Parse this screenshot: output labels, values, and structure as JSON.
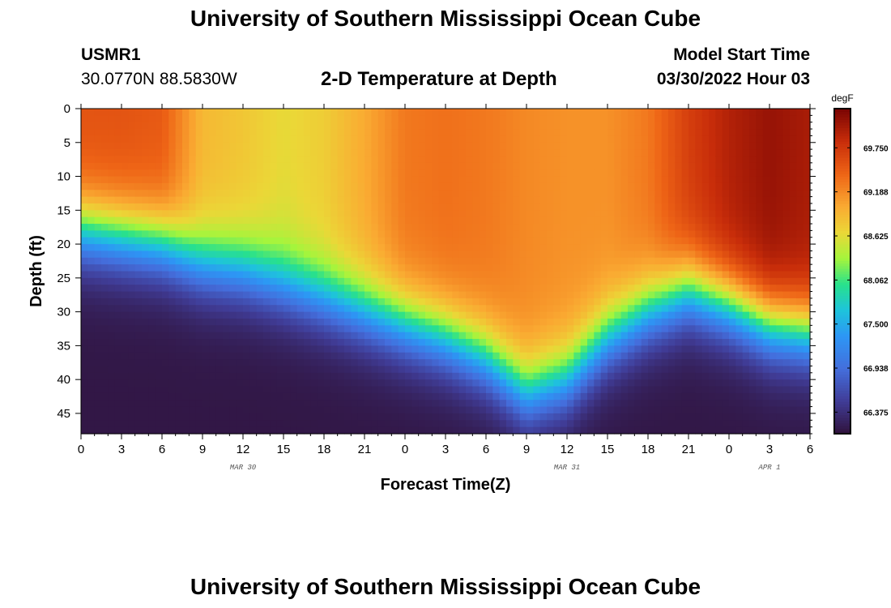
{
  "header": {
    "title": "University of Southern Mississippi Ocean Cube",
    "station_id": "USMR1",
    "station_coords": "30.0770N  88.5830W",
    "plot_title": "2-D Temperature at Depth",
    "model_start_label": "Model Start Time",
    "model_start_value": "03/30/2022 Hour 03"
  },
  "footer": {
    "title": "University of Southern Mississippi Ocean Cube"
  },
  "chart_data": {
    "type": "heatmap",
    "title": "2-D Temperature at Depth",
    "xlabel": "Forecast Time(Z)",
    "ylabel": "Depth (ft)",
    "x_range_hours": [
      0,
      54
    ],
    "x_ticks": [
      {
        "h": 0,
        "label": "0"
      },
      {
        "h": 3,
        "label": "3"
      },
      {
        "h": 6,
        "label": "6"
      },
      {
        "h": 9,
        "label": "9"
      },
      {
        "h": 12,
        "label": "12"
      },
      {
        "h": 15,
        "label": "15"
      },
      {
        "h": 18,
        "label": "18"
      },
      {
        "h": 21,
        "label": "21"
      },
      {
        "h": 24,
        "label": "0"
      },
      {
        "h": 27,
        "label": "3"
      },
      {
        "h": 30,
        "label": "6"
      },
      {
        "h": 33,
        "label": "9"
      },
      {
        "h": 36,
        "label": "12"
      },
      {
        "h": 39,
        "label": "15"
      },
      {
        "h": 42,
        "label": "18"
      },
      {
        "h": 45,
        "label": "21"
      },
      {
        "h": 48,
        "label": "0"
      },
      {
        "h": 51,
        "label": "3"
      },
      {
        "h": 54,
        "label": "6"
      }
    ],
    "date_labels": [
      {
        "h": 12,
        "label": "MAR 30"
      },
      {
        "h": 36,
        "label": "MAR 31"
      },
      {
        "h": 51,
        "label": "APR 1"
      }
    ],
    "y_range_ft": [
      0,
      48
    ],
    "y_ticks": [
      0,
      5,
      10,
      15,
      20,
      25,
      30,
      35,
      40,
      45
    ],
    "colorbar": {
      "unit": "degF",
      "range": [
        66.1,
        70.25
      ],
      "tick_values": [
        69.75,
        69.188,
        68.625,
        68.062,
        67.5,
        66.938,
        66.375
      ],
      "tick_labels": [
        "69.750",
        "69.188",
        "68.625",
        "68.062",
        "67.500",
        "66.938",
        "66.375"
      ]
    },
    "thermocline_depth_ft_by_hour": [
      {
        "h": 0,
        "d": 18
      },
      {
        "h": 3,
        "d": 19
      },
      {
        "h": 6,
        "d": 20
      },
      {
        "h": 9,
        "d": 23
      },
      {
        "h": 12,
        "d": 24
      },
      {
        "h": 15,
        "d": 26
      },
      {
        "h": 18,
        "d": 28
      },
      {
        "h": 21,
        "d": 30
      },
      {
        "h": 24,
        "d": 32
      },
      {
        "h": 27,
        "d": 34
      },
      {
        "h": 30,
        "d": 37
      },
      {
        "h": 33,
        "d": 42
      },
      {
        "h": 36,
        "d": 40
      },
      {
        "h": 39,
        "d": 34
      },
      {
        "h": 42,
        "d": 30
      },
      {
        "h": 45,
        "d": 27
      },
      {
        "h": 48,
        "d": 29
      },
      {
        "h": 51,
        "d": 32
      },
      {
        "h": 54,
        "d": 33
      }
    ],
    "upper_layer_temp_degF_by_hour": [
      {
        "h": 0,
        "t": 69.55
      },
      {
        "h": 3,
        "t": 69.55
      },
      {
        "h": 6,
        "t": 69.5
      },
      {
        "h": 9,
        "t": 68.9
      },
      {
        "h": 12,
        "t": 68.8
      },
      {
        "h": 15,
        "t": 68.65
      },
      {
        "h": 18,
        "t": 68.75
      },
      {
        "h": 21,
        "t": 69.0
      },
      {
        "h": 24,
        "t": 69.3
      },
      {
        "h": 27,
        "t": 69.35
      },
      {
        "h": 30,
        "t": 69.3
      },
      {
        "h": 33,
        "t": 69.2
      },
      {
        "h": 36,
        "t": 69.15
      },
      {
        "h": 39,
        "t": 69.15
      },
      {
        "h": 42,
        "t": 69.3
      },
      {
        "h": 45,
        "t": 69.7
      },
      {
        "h": 48,
        "t": 69.95
      },
      {
        "h": 51,
        "t": 70.1
      },
      {
        "h": 54,
        "t": 70.0
      }
    ],
    "bottom_temp_degF": 66.15
  }
}
